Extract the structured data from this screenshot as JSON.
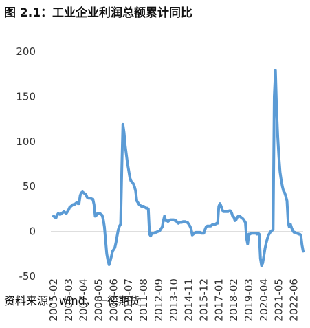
{
  "chart_data": {
    "type": "line",
    "title": "图 2.1：工业企业利润总额累计同比",
    "source": "资料来源：wind，一德期货",
    "categories": [
      "2005-02",
      null,
      null,
      null,
      null,
      null,
      null,
      null,
      null,
      null,
      null,
      null,
      null,
      "2006-03",
      null,
      null,
      null,
      null,
      null,
      null,
      null,
      null,
      null,
      null,
      null,
      null,
      "2007-04",
      null,
      null,
      null,
      null,
      null,
      null,
      null,
      null,
      null,
      null,
      null,
      null,
      "2008-05",
      null,
      null,
      null,
      null,
      null,
      null,
      null,
      null,
      null,
      null,
      null,
      null,
      "2009-06",
      null,
      null,
      null,
      null,
      null,
      null,
      null,
      null,
      null,
      null,
      null,
      null,
      "2010-07",
      null,
      null,
      null,
      null,
      null,
      null,
      null,
      null,
      null,
      null,
      null,
      null,
      "2011-08",
      null,
      null,
      null,
      null,
      null,
      null,
      null,
      null,
      null,
      null,
      null,
      null,
      "2012-09",
      null,
      null,
      null,
      null,
      null,
      null,
      null,
      null,
      null,
      null,
      null,
      null,
      "2013-10",
      null,
      null,
      null,
      null,
      null,
      null,
      null,
      null,
      null,
      null,
      null,
      null,
      "2014-11",
      null,
      null,
      null,
      null,
      null,
      null,
      null,
      null,
      null,
      null,
      null,
      null,
      "2015-12",
      null,
      null,
      null,
      null,
      null,
      null,
      null,
      null,
      null,
      null,
      null,
      null,
      "2017-01",
      null,
      null,
      null,
      null,
      null,
      null,
      null,
      null,
      null,
      null,
      null,
      null,
      "2018-02",
      null,
      null,
      null,
      null,
      null,
      null,
      null,
      null,
      null,
      null,
      null,
      null,
      "2019-03",
      null,
      null,
      null,
      null,
      null,
      null,
      null,
      null,
      null,
      null,
      null,
      null,
      "2020-04",
      null,
      null,
      null,
      null,
      null,
      null,
      null,
      null,
      null,
      null,
      null,
      null,
      "2021-05",
      null,
      null,
      null,
      null,
      null,
      null,
      null,
      null,
      null,
      null,
      null,
      null,
      "2022-06",
      null,
      null,
      null,
      null,
      null,
      null,
      null,
      null
    ],
    "values": [
      17,
      16,
      15,
      18,
      20,
      19,
      19,
      20,
      21,
      22,
      21,
      20,
      22,
      24,
      27,
      28,
      29,
      30,
      30,
      31,
      32,
      31,
      31,
      40,
      43,
      44,
      43,
      42,
      41,
      38,
      37,
      37,
      37,
      36,
      36,
      30,
      17,
      18,
      20,
      20,
      20,
      19,
      18,
      13,
      5,
      -10,
      -25,
      -32,
      -37,
      -33,
      -28,
      -22,
      -20,
      -18,
      -12,
      -5,
      2,
      6,
      8,
      70,
      119,
      110,
      95,
      85,
      75,
      68,
      60,
      56,
      55,
      53,
      50,
      45,
      34,
      32,
      30,
      29,
      28,
      28,
      28,
      27,
      26,
      26,
      25,
      -3,
      -5,
      -2,
      -2,
      -2,
      -1,
      -1,
      0,
      0,
      1,
      3,
      5,
      12,
      17,
      12,
      12,
      11,
      12,
      13,
      13,
      13,
      13,
      12,
      12,
      10,
      9,
      10,
      10,
      10,
      11,
      11,
      11,
      10,
      10,
      8,
      6,
      3,
      -4,
      -3,
      -2,
      -1,
      -1,
      -1,
      -1,
      -1,
      -2,
      -2,
      -2,
      2,
      5,
      6,
      6,
      6,
      6,
      7,
      8,
      8,
      8,
      9,
      9,
      28,
      31,
      28,
      24,
      22,
      22,
      22,
      22,
      22,
      23,
      23,
      21,
      17,
      16,
      12,
      13,
      16,
      17,
      17,
      16,
      15,
      14,
      12,
      10,
      -8,
      -14,
      -3,
      -3,
      -2,
      -2,
      -2,
      -2,
      -2,
      -3,
      -2,
      -3,
      -30,
      -38,
      -35,
      -27,
      -19,
      -13,
      -8,
      -4,
      -2,
      0,
      1,
      2,
      150,
      179,
      137,
      106,
      83,
      66,
      57,
      50,
      45,
      43,
      39,
      34,
      10,
      5,
      8,
      4,
      1,
      -1,
      -1,
      -2,
      -2,
      -3,
      -3,
      -4,
      -15,
      -22
    ],
    "color": "#5b9bd5",
    "ylim": [
      -50,
      200
    ],
    "yticks": [
      -50,
      0,
      50,
      100,
      150,
      200
    ]
  }
}
